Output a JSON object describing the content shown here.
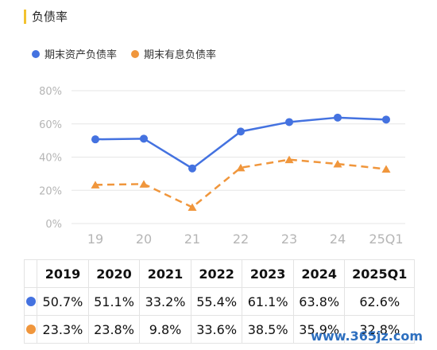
{
  "title": "负债率",
  "colors": {
    "series1": "#4472e0",
    "series2": "#f0963c",
    "title_accent": "#f2c230"
  },
  "chart_data": {
    "type": "line",
    "title": "负债率",
    "categories": [
      "19",
      "20",
      "21",
      "22",
      "23",
      "24",
      "25Q1"
    ],
    "y_ticks": [
      "0%",
      "20%",
      "40%",
      "60%",
      "80%"
    ],
    "ylim": [
      0,
      80
    ],
    "grid": true,
    "legend_position": "top-left",
    "series": [
      {
        "name": "期末资产负债率",
        "values": [
          50.7,
          51.1,
          33.2,
          55.4,
          61.1,
          63.8,
          62.6
        ],
        "marker": "circle",
        "line": "solid"
      },
      {
        "name": "期末有息负债率",
        "values": [
          23.3,
          23.8,
          9.8,
          33.6,
          38.5,
          35.9,
          32.8
        ],
        "marker": "triangle",
        "line": "dashed"
      }
    ]
  },
  "table": {
    "headers": [
      "2019",
      "2020",
      "2021",
      "2022",
      "2023",
      "2024",
      "2025Q1"
    ],
    "rows": [
      [
        "50.7%",
        "51.1%",
        "33.2%",
        "55.4%",
        "61.1%",
        "63.8%",
        "62.6%"
      ],
      [
        "23.3%",
        "23.8%",
        "9.8%",
        "33.6%",
        "38.5%",
        "35.9%",
        "32.8%"
      ]
    ]
  },
  "watermark": "www.365jz.com"
}
